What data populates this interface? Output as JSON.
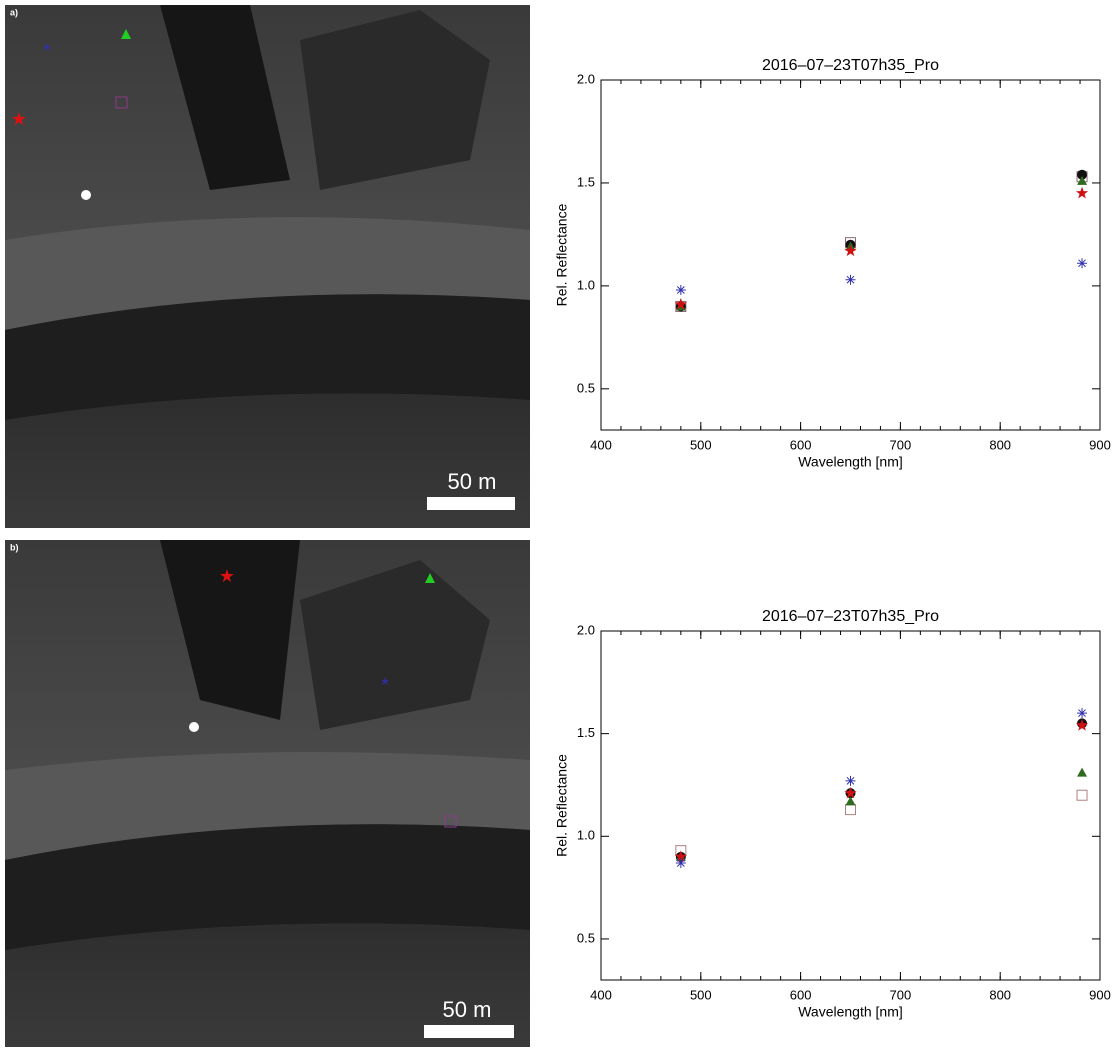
{
  "panels": [
    {
      "label": "a)",
      "scale": "50 m"
    },
    {
      "label": "b)",
      "scale": "50 m"
    }
  ],
  "chart_data": [
    {
      "type": "scatter",
      "title": "2016–07–23T07h35_Pro",
      "x_label": "Wavelength [nm]",
      "y_label": "Rel. Reflectance",
      "x": [
        480,
        650,
        882
      ],
      "xlim": [
        400,
        900
      ],
      "xticks": [
        400,
        500,
        600,
        700,
        800,
        900
      ],
      "ylim": [
        0.3,
        2.0
      ],
      "yticks": [
        {
          "value": 0.5,
          "label": "0.5"
        },
        {
          "value": 1,
          "label": "1.0"
        },
        1.5,
        {
          "value": 2,
          "label": "2.0"
        }
      ],
      "series": [
        {
          "marker": "square",
          "color": "#8a6a7a",
          "values": [
            0.9,
            1.21,
            1.53
          ]
        },
        {
          "marker": "circle",
          "color": "#111111",
          "values": [
            0.9,
            1.2,
            1.54
          ]
        },
        {
          "marker": "triangle",
          "color": "#2e6b1e",
          "values": [
            0.9,
            1.19,
            1.51
          ]
        },
        {
          "marker": "star",
          "color": "#d01010",
          "values": [
            0.91,
            1.17,
            1.45
          ]
        },
        {
          "marker": "asterisk",
          "color": "#3030b0",
          "values": [
            0.98,
            1.03,
            1.11
          ]
        }
      ]
    },
    {
      "type": "scatter",
      "title": "2016–07–23T07h35_Pro",
      "x_label": "Wavelength [nm]",
      "y_label": "Rel. Reflectance",
      "x": [
        480,
        650,
        882
      ],
      "xlim": [
        400,
        900
      ],
      "xticks": [
        400,
        500,
        600,
        700,
        800,
        900
      ],
      "ylim": [
        0.3,
        2.0
      ],
      "yticks": [
        {
          "value": 0.5,
          "label": "0.5"
        },
        {
          "value": 1,
          "label": "1.0"
        },
        1.5,
        {
          "value": 2,
          "label": "2.0"
        }
      ],
      "series": [
        {
          "marker": "square",
          "color": "#b08080",
          "values": [
            0.93,
            1.13,
            1.2
          ]
        },
        {
          "marker": "circle",
          "color": "#111111",
          "values": [
            0.9,
            1.21,
            1.55
          ]
        },
        {
          "marker": "triangle",
          "color": "#2e6b1e",
          "values": [
            0.9,
            1.17,
            1.31
          ]
        },
        {
          "marker": "star",
          "color": "#d01010",
          "values": [
            0.9,
            1.21,
            1.54
          ]
        },
        {
          "marker": "asterisk",
          "color": "#3030b0",
          "values": [
            0.87,
            1.27,
            1.6
          ]
        }
      ]
    }
  ]
}
